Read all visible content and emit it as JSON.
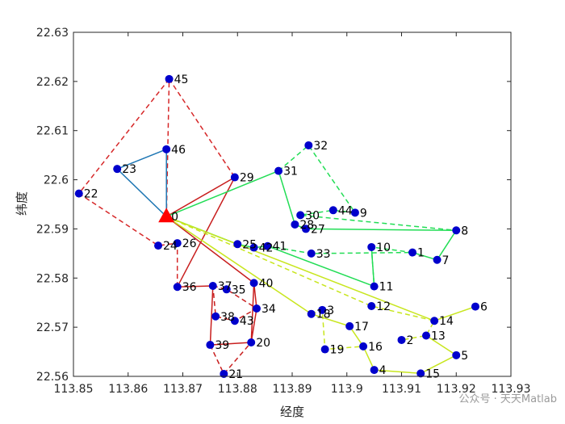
{
  "chart_data": {
    "type": "scatter",
    "title": "",
    "xlabel": "经度",
    "ylabel": "纬度",
    "xlim": [
      113.85,
      113.93
    ],
    "ylim": [
      22.56,
      22.63
    ],
    "xticks": [
      113.85,
      113.86,
      113.87,
      113.88,
      113.89,
      113.9,
      113.91,
      113.92,
      113.93
    ],
    "yticks": [
      22.56,
      22.57,
      22.58,
      22.59,
      22.6,
      22.61,
      22.62,
      22.63
    ],
    "xtick_labels": [
      "113.85",
      "113.86",
      "113.87",
      "113.88",
      "113.89",
      "113.9",
      "113.91",
      "113.92",
      "113.93"
    ],
    "ytick_labels": [
      "22.56",
      "22.57",
      "22.58",
      "22.59",
      "22.6",
      "22.61",
      "22.62",
      "22.63"
    ],
    "grid": false,
    "depot": {
      "id": "0",
      "x": 113.867,
      "y": 22.5925,
      "color": "#ff0000",
      "marker": "triangle"
    },
    "nodes": [
      {
        "id": "1",
        "x": 113.912,
        "y": 22.5852
      },
      {
        "id": "2",
        "x": 113.91,
        "y": 22.5674
      },
      {
        "id": "3",
        "x": 113.8955,
        "y": 22.5735
      },
      {
        "id": "4",
        "x": 113.905,
        "y": 22.5613
      },
      {
        "id": "5",
        "x": 113.92,
        "y": 22.5643
      },
      {
        "id": "6",
        "x": 113.9235,
        "y": 22.5742
      },
      {
        "id": "7",
        "x": 113.9165,
        "y": 22.5837
      },
      {
        "id": "8",
        "x": 113.92,
        "y": 22.5897
      },
      {
        "id": "9",
        "x": 113.9015,
        "y": 22.5933
      },
      {
        "id": "10",
        "x": 113.9045,
        "y": 22.5863
      },
      {
        "id": "11",
        "x": 113.905,
        "y": 22.5783
      },
      {
        "id": "12",
        "x": 113.9045,
        "y": 22.5743
      },
      {
        "id": "13",
        "x": 113.9145,
        "y": 22.5683
      },
      {
        "id": "14",
        "x": 113.916,
        "y": 22.5713
      },
      {
        "id": "15",
        "x": 113.9135,
        "y": 22.5606
      },
      {
        "id": "16",
        "x": 113.903,
        "y": 22.5661
      },
      {
        "id": "17",
        "x": 113.9005,
        "y": 22.5702
      },
      {
        "id": "18",
        "x": 113.8935,
        "y": 22.5727
      },
      {
        "id": "19",
        "x": 113.896,
        "y": 22.5655
      },
      {
        "id": "20",
        "x": 113.8825,
        "y": 22.5669
      },
      {
        "id": "21",
        "x": 113.8775,
        "y": 22.5605
      },
      {
        "id": "22",
        "x": 113.851,
        "y": 22.5972
      },
      {
        "id": "23",
        "x": 113.858,
        "y": 22.6022
      },
      {
        "id": "24",
        "x": 113.8655,
        "y": 22.5866
      },
      {
        "id": "25",
        "x": 113.88,
        "y": 22.5869
      },
      {
        "id": "26",
        "x": 113.869,
        "y": 22.5871
      },
      {
        "id": "27",
        "x": 113.8925,
        "y": 22.59
      },
      {
        "id": "28",
        "x": 113.8905,
        "y": 22.5909
      },
      {
        "id": "29",
        "x": 113.8795,
        "y": 22.6005
      },
      {
        "id": "30",
        "x": 113.8915,
        "y": 22.5928
      },
      {
        "id": "31",
        "x": 113.8875,
        "y": 22.6018
      },
      {
        "id": "32",
        "x": 113.893,
        "y": 22.607
      },
      {
        "id": "33",
        "x": 113.8935,
        "y": 22.585
      },
      {
        "id": "34",
        "x": 113.8835,
        "y": 22.5738
      },
      {
        "id": "35",
        "x": 113.878,
        "y": 22.5777
      },
      {
        "id": "36",
        "x": 113.869,
        "y": 22.5782
      },
      {
        "id": "37",
        "x": 113.8755,
        "y": 22.5784
      },
      {
        "id": "38",
        "x": 113.876,
        "y": 22.5722
      },
      {
        "id": "39",
        "x": 113.875,
        "y": 22.5664
      },
      {
        "id": "40",
        "x": 113.883,
        "y": 22.579
      },
      {
        "id": "41",
        "x": 113.8855,
        "y": 22.5865
      },
      {
        "id": "42",
        "x": 113.883,
        "y": 22.5862
      },
      {
        "id": "43",
        "x": 113.8795,
        "y": 22.5713
      },
      {
        "id": "44",
        "x": 113.8975,
        "y": 22.5938
      },
      {
        "id": "45",
        "x": 113.8675,
        "y": 22.6205
      },
      {
        "id": "46",
        "x": 113.867,
        "y": 22.6062
      }
    ],
    "series": [
      {
        "color": "#d62728",
        "dashed": true,
        "path": [
          "0",
          "45",
          "29"
        ]
      },
      {
        "color": "#d62728",
        "dashed": true,
        "path": [
          "45",
          "22",
          "24",
          "26",
          "36"
        ]
      },
      {
        "color": "#1f77b4",
        "dashed": false,
        "path": [
          "0",
          "46",
          "23",
          "0"
        ]
      },
      {
        "color": "#c81e1e",
        "dashed": false,
        "path": [
          "0",
          "29",
          "36"
        ]
      },
      {
        "color": "#c81e1e",
        "dashed": false,
        "path": [
          "36",
          "37",
          "39",
          "20",
          "40",
          "0"
        ]
      },
      {
        "color": "#c81e1e",
        "dashed": true,
        "path": [
          "37",
          "35",
          "34",
          "43",
          "38",
          "37"
        ]
      },
      {
        "color": "#c81e1e",
        "dashed": true,
        "path": [
          "39",
          "21",
          "20"
        ]
      },
      {
        "color": "#c81e1e",
        "dashed": false,
        "path": [
          "40",
          "34",
          "20"
        ]
      },
      {
        "color": "#22dd55",
        "dashed": false,
        "path": [
          "0",
          "31",
          "28",
          "27",
          "8",
          "7",
          "1"
        ]
      },
      {
        "color": "#22dd55",
        "dashed": true,
        "path": [
          "31",
          "32",
          "9",
          "44",
          "30",
          "8"
        ]
      },
      {
        "color": "#22dd55",
        "dashed": false,
        "path": [
          "0",
          "25",
          "42",
          "41",
          "11",
          "10"
        ]
      },
      {
        "color": "#22dd55",
        "dashed": true,
        "path": [
          "41",
          "33",
          "1",
          "10",
          "11"
        ]
      },
      {
        "color": "#c8e61e",
        "dashed": false,
        "path": [
          "0",
          "14",
          "6"
        ]
      },
      {
        "color": "#c8e61e",
        "dashed": true,
        "path": [
          "0",
          "12",
          "14",
          "13",
          "2"
        ]
      },
      {
        "color": "#c8e61e",
        "dashed": false,
        "path": [
          "0",
          "18",
          "17",
          "16",
          "4",
          "15",
          "5",
          "13"
        ]
      },
      {
        "color": "#c8e61e",
        "dashed": true,
        "path": [
          "18",
          "3",
          "19",
          "16"
        ]
      }
    ],
    "node_color": "#0000cc"
  },
  "watermark": "公众号 · 天天Matlab"
}
